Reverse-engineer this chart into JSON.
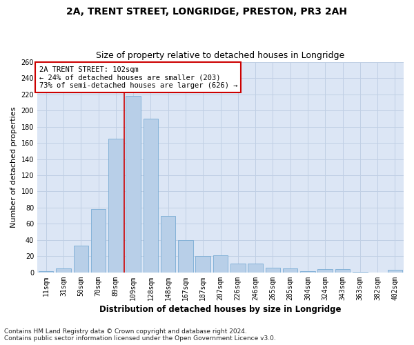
{
  "title": "2A, TRENT STREET, LONGRIDGE, PRESTON, PR3 2AH",
  "subtitle": "Size of property relative to detached houses in Longridge",
  "xlabel": "Distribution of detached houses by size in Longridge",
  "ylabel": "Number of detached properties",
  "bar_labels": [
    "11sqm",
    "31sqm",
    "50sqm",
    "70sqm",
    "89sqm",
    "109sqm",
    "128sqm",
    "148sqm",
    "167sqm",
    "187sqm",
    "207sqm",
    "226sqm",
    "246sqm",
    "265sqm",
    "285sqm",
    "304sqm",
    "324sqm",
    "343sqm",
    "363sqm",
    "382sqm",
    "402sqm"
  ],
  "bar_values": [
    2,
    5,
    33,
    78,
    165,
    218,
    190,
    70,
    40,
    20,
    21,
    11,
    11,
    6,
    5,
    2,
    4,
    4,
    1,
    0,
    3
  ],
  "bar_color": "#b8cfe8",
  "bar_edge_color": "#7aacd4",
  "vline_x_index": 5,
  "annotation_line1": "2A TRENT STREET: 102sqm",
  "annotation_line2": "← 24% of detached houses are smaller (203)",
  "annotation_line3": "73% of semi-detached houses are larger (626) →",
  "annotation_box_color": "#ffffff",
  "annotation_box_edge": "#cc0000",
  "vline_color": "#cc0000",
  "ylim": [
    0,
    260
  ],
  "yticks": [
    0,
    20,
    40,
    60,
    80,
    100,
    120,
    140,
    160,
    180,
    200,
    220,
    240,
    260
  ],
  "grid_color": "#c0cfe4",
  "background_color": "#dce6f5",
  "footer_line1": "Contains HM Land Registry data © Crown copyright and database right 2024.",
  "footer_line2": "Contains public sector information licensed under the Open Government Licence v3.0.",
  "title_fontsize": 10,
  "subtitle_fontsize": 9,
  "xlabel_fontsize": 8.5,
  "ylabel_fontsize": 8,
  "tick_fontsize": 7,
  "footer_fontsize": 6.5,
  "annot_fontsize": 7.5
}
